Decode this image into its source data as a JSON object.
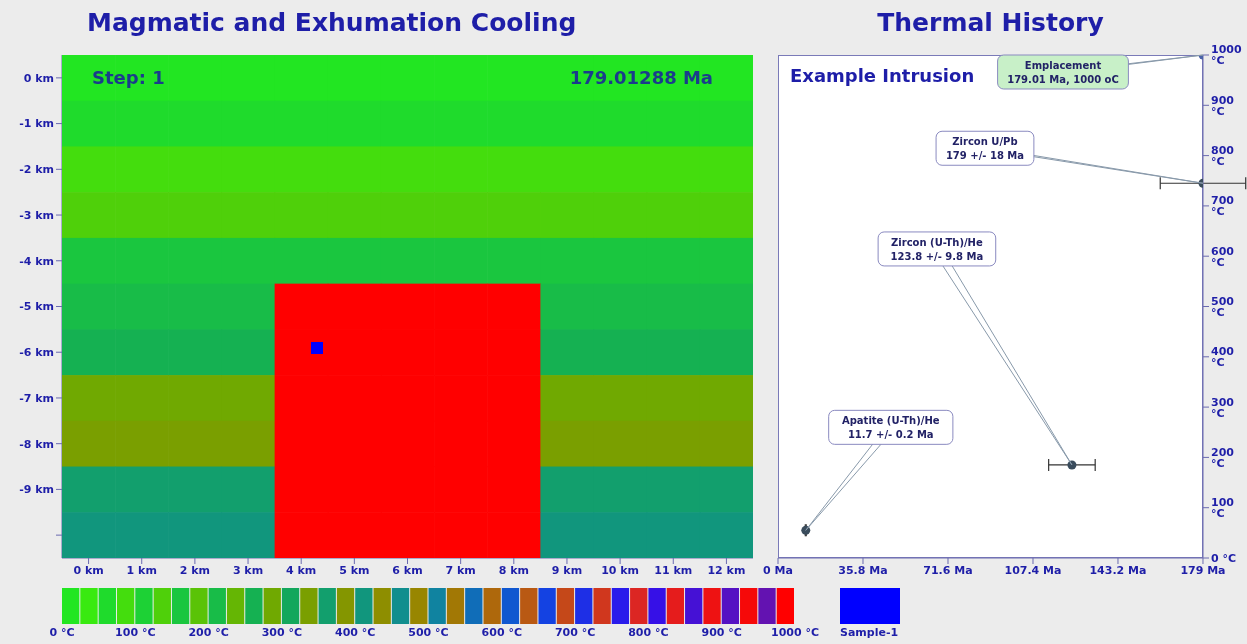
{
  "chart_data": [
    {
      "type": "heatmap",
      "title": "Magmatic and Exhumation Cooling",
      "annotations": [
        "Step: 1",
        "179.01288 Ma",
        "Sample-1"
      ],
      "categories": [
        "0 km",
        "1 km",
        "2 km",
        "3 km",
        "4 km",
        "5 km",
        "6 km",
        "7 km",
        "8 km",
        "9 km",
        "10 km",
        "11 km",
        "12 km"
      ],
      "y_categories": [
        "0 km",
        "-1 km",
        "-2 km",
        "-3 km",
        "-4 km",
        "-5 km",
        "-6 km",
        "-7 km",
        "-8 km",
        "-9 km",
        null
      ],
      "cells": [
        [
          10,
          10,
          10,
          10,
          10,
          10,
          10,
          10,
          10,
          10,
          10,
          10,
          10
        ],
        [
          50,
          50,
          50,
          50,
          50,
          50,
          50,
          50,
          50,
          50,
          50,
          50,
          50
        ],
        [
          90,
          90,
          90,
          90,
          90,
          90,
          90,
          90,
          90,
          90,
          90,
          90,
          90
        ],
        [
          130,
          130,
          130,
          130,
          130,
          130,
          130,
          130,
          130,
          130,
          130,
          130,
          130
        ],
        [
          170,
          170,
          170,
          170,
          170,
          170,
          170,
          170,
          170,
          170,
          170,
          170,
          170
        ],
        [
          210,
          210,
          210,
          210,
          990,
          990,
          990,
          990,
          990,
          210,
          210,
          210,
          210
        ],
        [
          250,
          250,
          250,
          250,
          990,
          990,
          990,
          990,
          990,
          250,
          250,
          250,
          250
        ],
        [
          290,
          290,
          290,
          290,
          990,
          990,
          990,
          990,
          990,
          290,
          290,
          290,
          290
        ],
        [
          330,
          330,
          330,
          330,
          990,
          990,
          990,
          990,
          990,
          330,
          330,
          330,
          330
        ],
        [
          370,
          370,
          370,
          370,
          990,
          990,
          990,
          990,
          990,
          370,
          370,
          370,
          370
        ],
        [
          410,
          410,
          410,
          410,
          990,
          990,
          990,
          990,
          990,
          410,
          410,
          410,
          410
        ]
      ],
      "clim": [
        0,
        1000
      ],
      "cticks": [
        {
          "value": 0,
          "label": "0 °C"
        },
        {
          "value": 100,
          "label": "100 °C"
        },
        {
          "value": 200,
          "label": "200 °C"
        },
        {
          "value": 300,
          "label": "300 °C"
        },
        {
          "value": 400,
          "label": "400 °C"
        },
        {
          "value": 500,
          "label": "500 °C"
        },
        {
          "value": 600,
          "label": "600 °C"
        },
        {
          "value": 700,
          "label": "700 °C"
        },
        {
          "value": 800,
          "label": "800 °C"
        },
        {
          "value": 900,
          "label": "900 °C"
        },
        {
          "value": 1000,
          "label": "1000 °C"
        }
      ]
    },
    {
      "type": "scatter",
      "title": "Thermal History",
      "subtitle": "Example Intrusion",
      "x": [
        11.7,
        123.8,
        179,
        179.01
      ],
      "values": [
        55,
        185,
        745,
        1000
      ],
      "xerrors": [
        0.2,
        9.8,
        18,
        null
      ],
      "colors": [
        "#3a4c5c",
        "#3a4c5c",
        "#3a4c5c",
        "#4a62a8"
      ],
      "marker": "circle",
      "xlim": [
        0,
        179.01
      ],
      "xticks": [
        {
          "value": 0,
          "label": "0 Ma"
        },
        {
          "value": 35.8,
          "label": "35.8 Ma"
        },
        {
          "value": 71.6,
          "label": "71.6 Ma"
        },
        {
          "value": 107.4,
          "label": "107.4 Ma"
        },
        {
          "value": 143.2,
          "label": "143.2 Ma"
        },
        {
          "value": 179,
          "label": "179 Ma"
        }
      ],
      "ylim": [
        0,
        1000
      ],
      "yticks": [
        {
          "value": 0,
          "label": "0 °C"
        },
        {
          "value": 100,
          "label": "100 °C"
        },
        {
          "value": 200,
          "label": "200 °C"
        },
        {
          "value": 300,
          "label": "300 °C"
        },
        {
          "value": 400,
          "label": "400 °C"
        },
        {
          "value": 500,
          "label": "500 °C"
        },
        {
          "value": 600,
          "label": "600 °C"
        },
        {
          "value": 700,
          "label": "700 °C"
        },
        {
          "value": 800,
          "label": "800 °C"
        },
        {
          "value": 900,
          "label": "900 °C"
        },
        {
          "value": 1000,
          "label": "1000 °C"
        }
      ],
      "annotations": [
        "Emplacement\n179.01 Ma, 1000 oC",
        "Zircon U/Pb\n179 +/- 18 Ma",
        "Zircon (U-Th)/He\n123.8 +/- 9.8 Ma",
        "Apatite (U-Th)/He\n11.7 +/- 0.2 Ma"
      ]
    }
  ]
}
